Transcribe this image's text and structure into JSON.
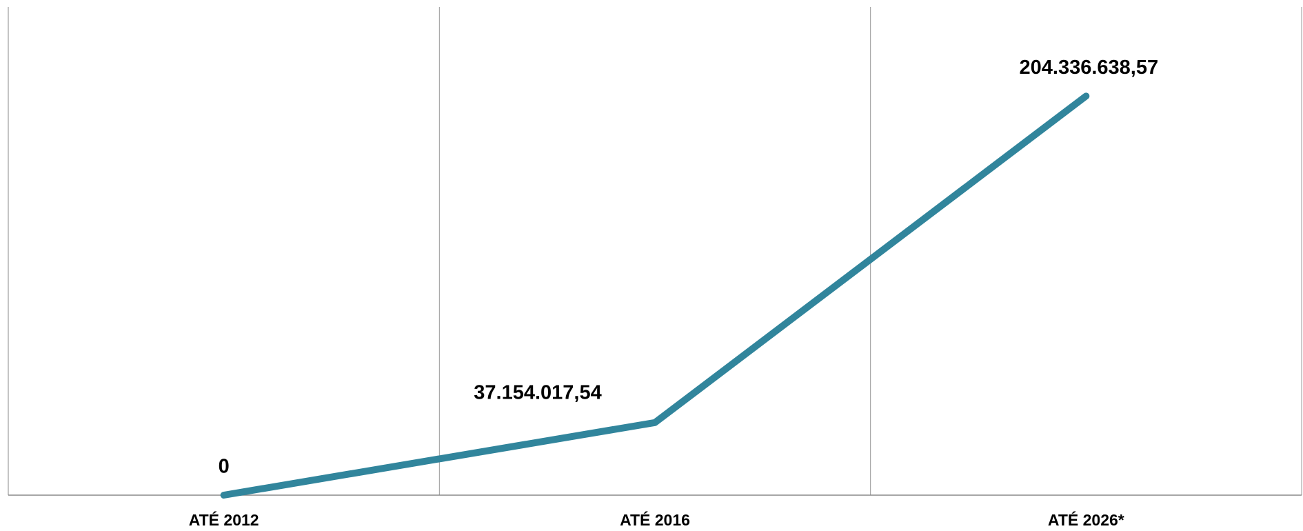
{
  "chart_data": {
    "type": "line",
    "categories": [
      "ATÉ 2012",
      "ATÉ 2016",
      "ATÉ 2026*"
    ],
    "values": [
      0,
      37154017.54,
      204336638.57
    ],
    "value_labels": [
      "0",
      "37.154.017,54",
      "204.336.638,57"
    ],
    "color": "#31859c",
    "ylim": [
      0,
      250000000
    ],
    "grid": true
  }
}
